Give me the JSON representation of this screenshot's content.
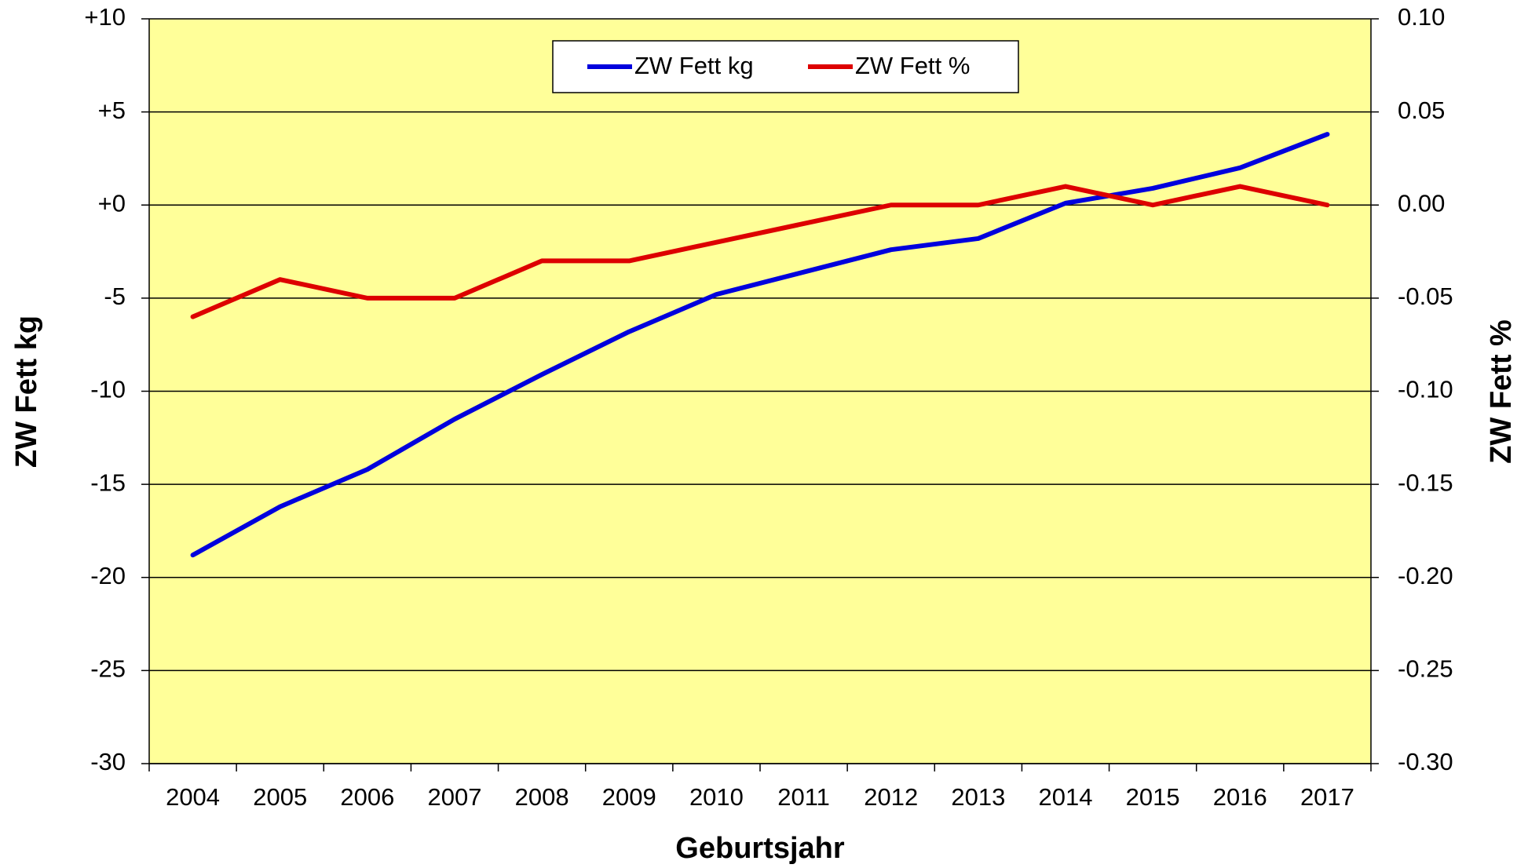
{
  "chart_data": {
    "type": "line",
    "x_label": "Geburtsjahr",
    "y_label": "ZW Fett kg",
    "y2_label": "ZW Fett %",
    "categories": [
      "2004",
      "2005",
      "2006",
      "2007",
      "2008",
      "2009",
      "2010",
      "2011",
      "2012",
      "2013",
      "2014",
      "2015",
      "2016",
      "2017"
    ],
    "series": [
      {
        "name": "ZW Fett kg",
        "color": "#0000dd",
        "values": [
          -18.8,
          -16.2,
          -14.2,
          -11.5,
          -9.1,
          -6.8,
          -4.8,
          -3.6,
          -2.4,
          -1.8,
          0.1,
          0.9,
          2.0,
          3.8
        ]
      },
      {
        "name": "ZW Fett %",
        "color": "#dd0000",
        "axis": "y2",
        "values": [
          -0.06,
          -0.04,
          -0.05,
          -0.05,
          -0.03,
          -0.03,
          -0.02,
          -0.01,
          0,
          0,
          0.01,
          0,
          0.01,
          0
        ]
      }
    ],
    "ylim": [
      -30,
      10
    ],
    "yticks": [
      {
        "value": 10,
        "label": "+10"
      },
      {
        "value": 5,
        "label": "+5"
      },
      {
        "value": 0,
        "label": "+0"
      },
      -5,
      -10,
      -15,
      -20,
      -25,
      -30
    ],
    "y2lim": [
      -0.3,
      0.1
    ],
    "y2ticks": [
      {
        "value": 0.1,
        "label": "0.10"
      },
      0.05,
      {
        "value": 0,
        "label": "0.00"
      },
      -0.05,
      {
        "value": -0.1,
        "label": "-0.10"
      },
      -0.15,
      {
        "value": -0.2,
        "label": "-0.20"
      },
      -0.25,
      {
        "value": -0.3,
        "label": "-0.30"
      }
    ],
    "grid": true,
    "background": "#ffff99",
    "legend": "top"
  }
}
